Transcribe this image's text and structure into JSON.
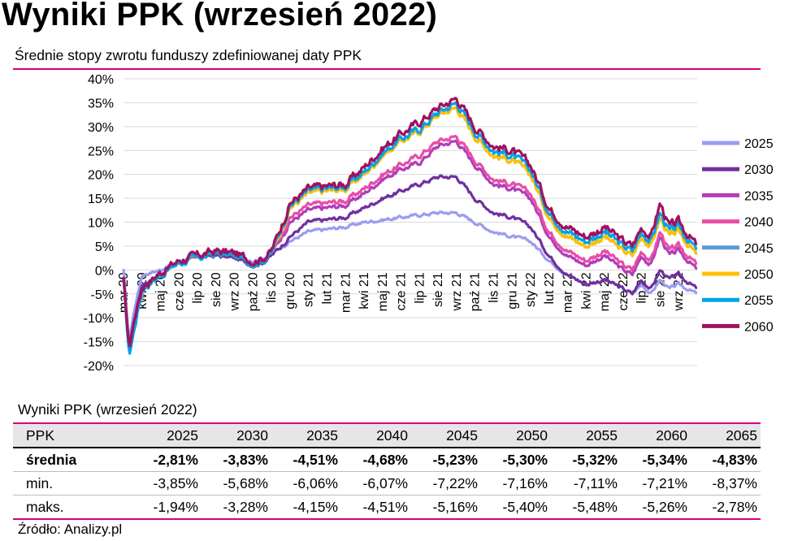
{
  "title": "Wyniki PPK (wrzesień 2022)",
  "subtitle": "Średnie stopy zwrotu funduszy zdefiniowanej daty PPK",
  "colors": {
    "accent": "#d4007f",
    "grid": "#d9d9d9"
  },
  "chart_data": {
    "type": "line",
    "y_tick_labels": [
      "40%",
      "35%",
      "30%",
      "25%",
      "20%",
      "15%",
      "10%",
      "5%",
      "0%",
      "-5%",
      "-10%",
      "-15%",
      "-20%"
    ],
    "ylim": [
      -20,
      40
    ],
    "grid": true,
    "legend_position": "right",
    "x_tick_labels": [
      "mar 20",
      "kwi 20",
      "maj 20",
      "cze 20",
      "lip 20",
      "sie 20",
      "wrz 20",
      "paź 20",
      "lis 20",
      "gru 20",
      "sty 21",
      "lut 21",
      "mar 21",
      "kwi 21",
      "maj 21",
      "cze 21",
      "lip 21",
      "sie 21",
      "wrz 21",
      "paź 21",
      "lis 21",
      "gru 21",
      "sty 22",
      "lut 22",
      "mar 22",
      "kwi 22",
      "maj 22",
      "cze 22",
      "lip 22",
      "sie 22",
      "wrz 22"
    ],
    "x_tick_months": [
      0,
      1,
      2,
      3,
      4,
      5,
      6,
      7,
      8,
      9,
      10,
      11,
      12,
      13,
      14,
      15,
      16,
      17,
      18,
      19,
      20,
      21,
      22,
      23,
      24,
      25,
      26,
      27,
      28,
      29,
      30
    ],
    "x_range_months": [
      0,
      31
    ],
    "series": [
      {
        "name": "2025",
        "color": "#9c9cf0",
        "x": [
          0,
          0.3,
          0.6,
          1,
          2,
          3,
          4,
          5,
          6,
          7,
          7.5,
          8,
          8.4,
          9,
          10,
          11,
          12,
          13,
          14,
          15,
          16,
          17,
          18,
          19,
          20,
          21,
          22,
          23,
          24,
          25,
          26,
          27,
          27.5,
          28,
          28.5,
          29,
          29.5,
          30,
          31
        ],
        "values": [
          0,
          -15,
          -8,
          -1,
          0,
          2,
          3,
          3.5,
          3,
          2,
          2.5,
          3.5,
          4.5,
          6,
          8,
          8.5,
          9,
          10,
          10.5,
          11,
          11.5,
          12,
          12,
          10,
          8,
          7,
          6,
          2,
          -1,
          -3,
          -2,
          -4,
          -5,
          -3,
          -5,
          -2,
          -4,
          -3,
          -5
        ]
      },
      {
        "name": "2030",
        "color": "#7030a0",
        "x": [
          0,
          0.3,
          0.6,
          1,
          2,
          3,
          4,
          5,
          6,
          7,
          7.5,
          8,
          8.4,
          9,
          10,
          11,
          12,
          13,
          14,
          15,
          16,
          17,
          18,
          19,
          20,
          21,
          22,
          23,
          24,
          25,
          26,
          27,
          27.5,
          28,
          28.5,
          29,
          29.5,
          30,
          31
        ],
        "values": [
          -2,
          -16,
          -10,
          -3,
          -1,
          1.5,
          2.5,
          3,
          2.5,
          1,
          1.5,
          3,
          4.5,
          7,
          10,
          10.5,
          11,
          13,
          15,
          16.5,
          18,
          19.5,
          19.5,
          15,
          12,
          11,
          9,
          3,
          -1,
          -3,
          -2,
          -4,
          -5,
          -2,
          -4,
          0,
          -2,
          -1,
          -4
        ]
      },
      {
        "name": "2035",
        "color": "#b23db8",
        "x": [
          0,
          0.3,
          0.6,
          1,
          2,
          3,
          4,
          5,
          6,
          7,
          7.5,
          8,
          8.4,
          9,
          10,
          11,
          12,
          13,
          14,
          15,
          16,
          17,
          18,
          19,
          20,
          21,
          22,
          23,
          24,
          25,
          26,
          27,
          27.5,
          28,
          28.5,
          29,
          29.5,
          30,
          31
        ],
        "values": [
          -2,
          -17,
          -11,
          -4,
          -1,
          1.5,
          2.5,
          3.5,
          3,
          1.5,
          2,
          3.5,
          6,
          10,
          12.5,
          13,
          13.5,
          16,
          19,
          21,
          22.5,
          26,
          27,
          22,
          18,
          17,
          15,
          7,
          3,
          1,
          3,
          0,
          -1,
          3,
          1,
          7,
          3,
          4,
          0
        ]
      },
      {
        "name": "2040",
        "color": "#e84ea8",
        "x": [
          0,
          0.3,
          0.6,
          1,
          2,
          3,
          4,
          5,
          6,
          7,
          7.5,
          8,
          8.4,
          9,
          10,
          11,
          12,
          13,
          14,
          15,
          16,
          17,
          18,
          19,
          20,
          21,
          22,
          23,
          24,
          25,
          26,
          27,
          27.5,
          28,
          28.5,
          29,
          29.5,
          30,
          31
        ],
        "values": [
          -2,
          -17,
          -11,
          -4,
          -1,
          1.5,
          2.5,
          3.5,
          3,
          1.5,
          2,
          3.5,
          6.5,
          11,
          13.5,
          14,
          14.5,
          17,
          20,
          22,
          24,
          27,
          28,
          23,
          19,
          18,
          16,
          8,
          4,
          2,
          4,
          1,
          0,
          4,
          2,
          8,
          4,
          5,
          1
        ]
      },
      {
        "name": "2045",
        "color": "#5b9bd5",
        "x": [
          0,
          0.3,
          0.6,
          1,
          2,
          3,
          4,
          5,
          6,
          7,
          7.5,
          8,
          8.4,
          9,
          10,
          11,
          12,
          13,
          14,
          15,
          16,
          17,
          18,
          19,
          20,
          21,
          22,
          23,
          24,
          25,
          26,
          27,
          27.5,
          28,
          28.5,
          29,
          29.5,
          30,
          31
        ],
        "values": [
          -2,
          -17,
          -11,
          -4,
          -1,
          1.5,
          2.5,
          3.5,
          3,
          1.5,
          2,
          3.5,
          7,
          13,
          16,
          16.5,
          17,
          20,
          24,
          27,
          29,
          32.5,
          34,
          28,
          24,
          23,
          20,
          11,
          7,
          5,
          7,
          4,
          3,
          7,
          5,
          11,
          7,
          8,
          3
        ]
      },
      {
        "name": "2050",
        "color": "#ffc000",
        "x": [
          0,
          0.3,
          0.6,
          1,
          2,
          3,
          4,
          5,
          6,
          7,
          7.5,
          8,
          8.4,
          9,
          10,
          11,
          12,
          13,
          14,
          15,
          16,
          17,
          18,
          19,
          20,
          21,
          22,
          23,
          24,
          25,
          26,
          27,
          27.5,
          28,
          28.5,
          29,
          29.5,
          30,
          31
        ],
        "values": [
          -2,
          -17,
          -11,
          -4,
          -1,
          1.5,
          2.5,
          3.5,
          3,
          1.5,
          2,
          3.5,
          7,
          13,
          16,
          16.5,
          17,
          20,
          24,
          27,
          29,
          32.5,
          34,
          28,
          24,
          23,
          20,
          11,
          7,
          5,
          7,
          4,
          3,
          7,
          5,
          11,
          7,
          8,
          3
        ]
      },
      {
        "name": "2055",
        "color": "#00a3e8",
        "x": [
          0,
          0.3,
          0.6,
          1,
          2,
          3,
          4,
          5,
          6,
          7,
          7.5,
          8,
          8.4,
          9,
          10,
          11,
          12,
          13,
          14,
          15,
          16,
          17,
          18,
          19,
          20,
          21,
          22,
          23,
          24,
          25,
          26,
          27,
          27.5,
          28,
          28.5,
          29,
          29.5,
          30,
          31
        ],
        "values": [
          -2,
          -18,
          -12,
          -4,
          -1,
          1.5,
          2.5,
          3.5,
          3,
          1.5,
          2,
          3.5,
          7.5,
          13.5,
          16.5,
          17,
          17.5,
          20.5,
          24.5,
          27.5,
          29.5,
          33,
          35,
          29,
          25,
          24,
          21,
          12,
          8,
          6,
          8,
          5,
          4,
          8,
          6,
          12,
          8,
          9,
          4
        ]
      },
      {
        "name": "2060",
        "color": "#a0125f",
        "x": [
          0,
          0.3,
          0.6,
          1,
          2,
          3,
          4,
          5,
          6,
          7,
          7.5,
          8,
          8.4,
          9,
          10,
          11,
          12,
          13,
          14,
          15,
          16,
          17,
          18,
          19,
          20,
          21,
          22,
          23,
          24,
          25,
          26,
          27,
          27.5,
          28,
          28.5,
          29,
          29.5,
          30,
          31
        ],
        "values": [
          -2,
          -16.5,
          -10,
          -3.5,
          -0.5,
          2,
          3,
          4,
          3.5,
          2,
          2.5,
          4,
          8,
          14,
          17,
          17.5,
          18,
          21.5,
          25.5,
          28.5,
          31,
          34,
          36,
          30,
          26,
          25,
          22,
          13,
          9,
          7,
          9,
          6,
          5,
          9,
          7,
          14,
          9,
          10,
          5
        ]
      }
    ]
  },
  "table": {
    "caption": "Wyniki PPK (wrzesień 2022)",
    "header": [
      "PPK",
      "2025",
      "2030",
      "2035",
      "2040",
      "2045",
      "2050",
      "2055",
      "2060",
      "2065"
    ],
    "rows": [
      {
        "label": "średnia",
        "values": [
          "-2,81%",
          "-3,83%",
          "-4,51%",
          "-4,68%",
          "-5,23%",
          "-5,30%",
          "-5,32%",
          "-5,34%",
          "-4,83%"
        ]
      },
      {
        "label": "min.",
        "values": [
          "-3,85%",
          "-5,68%",
          "-6,06%",
          "-6,07%",
          "-7,22%",
          "-7,16%",
          "-7,11%",
          "-7,21%",
          "-8,37%"
        ]
      },
      {
        "label": "maks.",
        "values": [
          "-1,94%",
          "-3,28%",
          "-4,15%",
          "-4,51%",
          "-5,16%",
          "-5,40%",
          "-5,48%",
          "-5,26%",
          "-2,78%"
        ]
      }
    ]
  },
  "source": "Źródło: Analizy.pl"
}
